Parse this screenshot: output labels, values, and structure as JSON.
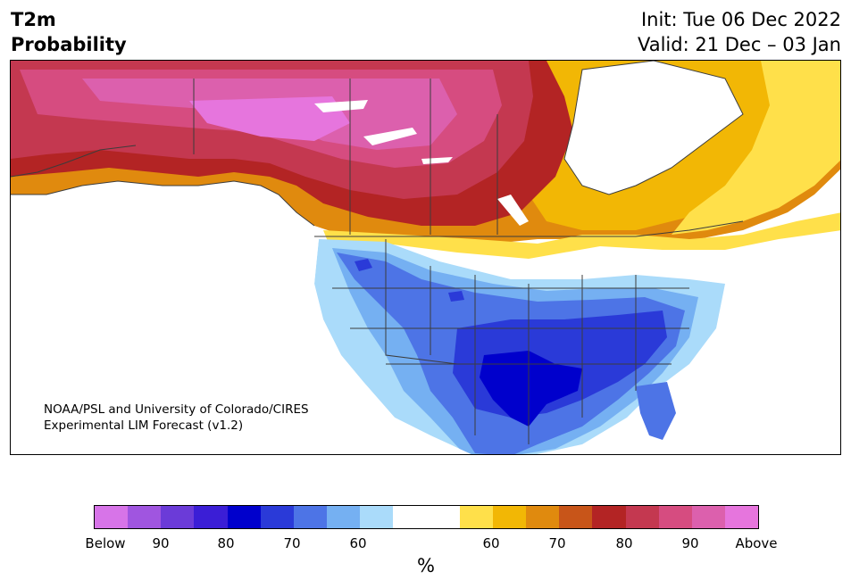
{
  "title": {
    "line1": "T2m",
    "line2": "Probability"
  },
  "init": "Init: Tue 06 Dec 2022",
  "valid": "Valid: 21 Dec – 03 Jan",
  "credit": {
    "line1": "NOAA/PSL and University of Colorado/CIRES",
    "line2": "Experimental LIM Forecast (v1.2)"
  },
  "colorbar": {
    "unit": "%",
    "colors": [
      "#d774e8",
      "#a055e0",
      "#6b3bd8",
      "#3b1ed6",
      "#0000cc",
      "#2a3ad8",
      "#4d74e6",
      "#75b0f2",
      "#aadbfa",
      "#ffffff",
      "#ffffff",
      "#ffe04a",
      "#f2b705",
      "#e08a0e",
      "#c85519",
      "#b32424",
      "#c43850",
      "#d64c80",
      "#dc60ad",
      "#e675dd"
    ],
    "ticks": [
      "Below",
      "90",
      "80",
      "70",
      "60",
      "60",
      "70",
      "80",
      "90",
      "Above"
    ]
  },
  "colors": {
    "below_60": "#aadbfa",
    "below_70": "#75b0f2",
    "below_80": "#4d74e6",
    "below_90": "#2a3ad8",
    "below_95": "#0000cc",
    "above_60": "#ffe04a",
    "above_65": "#f2b705",
    "above_70": "#e08a0e",
    "above_75": "#c85519",
    "above_80": "#b32424",
    "above_85": "#c43850",
    "above_90": "#d64c80",
    "above_95": "#dc60ad",
    "above_max": "#e675dd"
  }
}
